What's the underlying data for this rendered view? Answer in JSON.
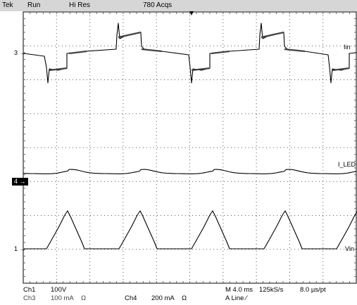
{
  "topbar": {
    "brand": "Tek",
    "run_state": "Run",
    "mode": "Hi Res",
    "acqs": "780 Acqs"
  },
  "channel_markers": {
    "ch3": "3",
    "ch4": "4",
    "ch1": "1"
  },
  "trace_labels": {
    "iin": "Iin",
    "iled": "I_LED",
    "vin": "Vin"
  },
  "bottom": {
    "ch1_name": "Ch1",
    "ch1_scale": "100V",
    "ch3_name": "Ch3",
    "ch3_scale": "100 mA",
    "ch4_name": "Ch4",
    "ch4_scale": "200 mA",
    "ohm1": "Ω",
    "ohm2": "Ω",
    "timebase": "M 4.0 ms",
    "sample_rate": "125kS/s",
    "resolution": "8.0 µs/pt",
    "trigger": "A  Line  ∕"
  },
  "colors": {
    "topbar_bg": "#d6d6d6",
    "trace": "#000000",
    "graticule": "#555555"
  }
}
